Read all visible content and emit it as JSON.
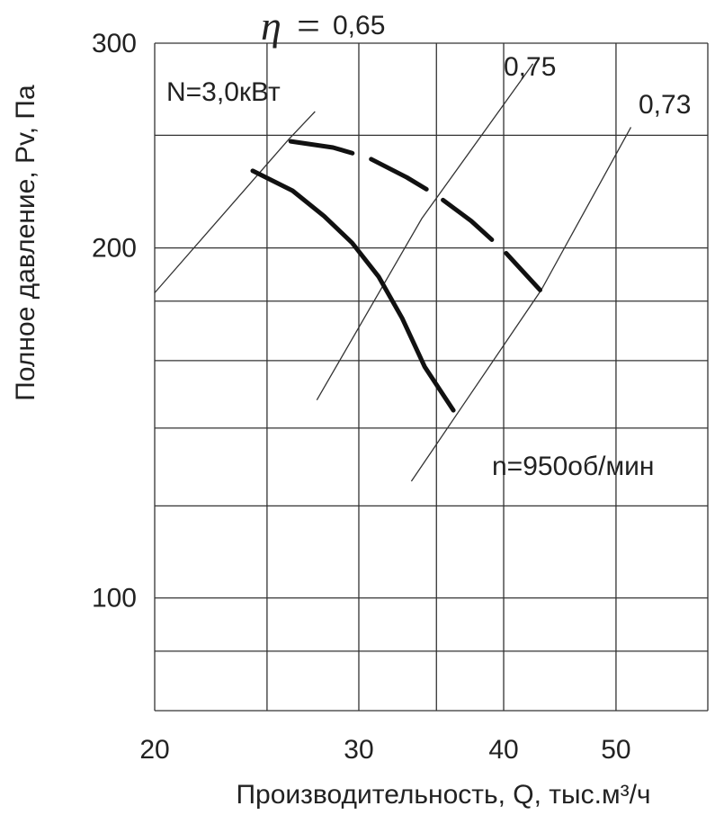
{
  "chart_data": {
    "type": "line",
    "xscale": "log",
    "yscale": "log",
    "xlim": [
      20,
      60
    ],
    "ylim": [
      80,
      300
    ],
    "x_ticks": [
      20,
      30,
      40,
      50
    ],
    "y_ticks": [
      100,
      200,
      300
    ],
    "x_gridlines": [
      20,
      25,
      30,
      35,
      40,
      50,
      60
    ],
    "y_gridlines": [
      80,
      90,
      100,
      120,
      140,
      160,
      180,
      200,
      250,
      300
    ],
    "grid": true,
    "xlabel": "Производительность, Q, тыс.м³/ч",
    "ylabel": "Полное давление, Pv, Па",
    "series": [
      {
        "name": "",
        "style": "solid-thick",
        "points": [
          [
            24.3,
            233
          ],
          [
            26.3,
            224
          ],
          [
            28.0,
            213
          ],
          [
            29.6,
            202
          ],
          [
            31.2,
            189
          ],
          [
            32.7,
            174
          ],
          [
            34.2,
            158
          ],
          [
            36.2,
            145
          ]
        ]
      },
      {
        "name": "",
        "style": "dashed-thick",
        "points": [
          [
            26.2,
            247
          ],
          [
            28.5,
            244
          ],
          [
            30.6,
            239
          ],
          [
            33.0,
            230
          ],
          [
            35.0,
            222
          ],
          [
            37.5,
            211
          ],
          [
            40.0,
            199
          ],
          [
            43.0,
            184
          ]
        ]
      }
    ],
    "efficiency_lines": [
      {
        "label": "0,65",
        "points": [
          [
            20.0,
            183
          ],
          [
            26.1,
            248
          ],
          [
            27.5,
            262
          ]
        ]
      },
      {
        "label": "0,75",
        "points": [
          [
            27.6,
            148
          ],
          [
            34.0,
            212
          ],
          [
            42.4,
            288
          ]
        ]
      },
      {
        "label": "0,73",
        "points": [
          [
            33.3,
            126
          ],
          [
            43.1,
            184
          ],
          [
            51.5,
            254
          ]
        ]
      }
    ],
    "annotations": {
      "eta_symbol": "η",
      "eta_equals": "=",
      "eta_065": "0,65",
      "eta_075": "0,75",
      "eta_073": "0,73",
      "power": "N=3,0кВт",
      "speed": "n=950об/мин"
    }
  }
}
